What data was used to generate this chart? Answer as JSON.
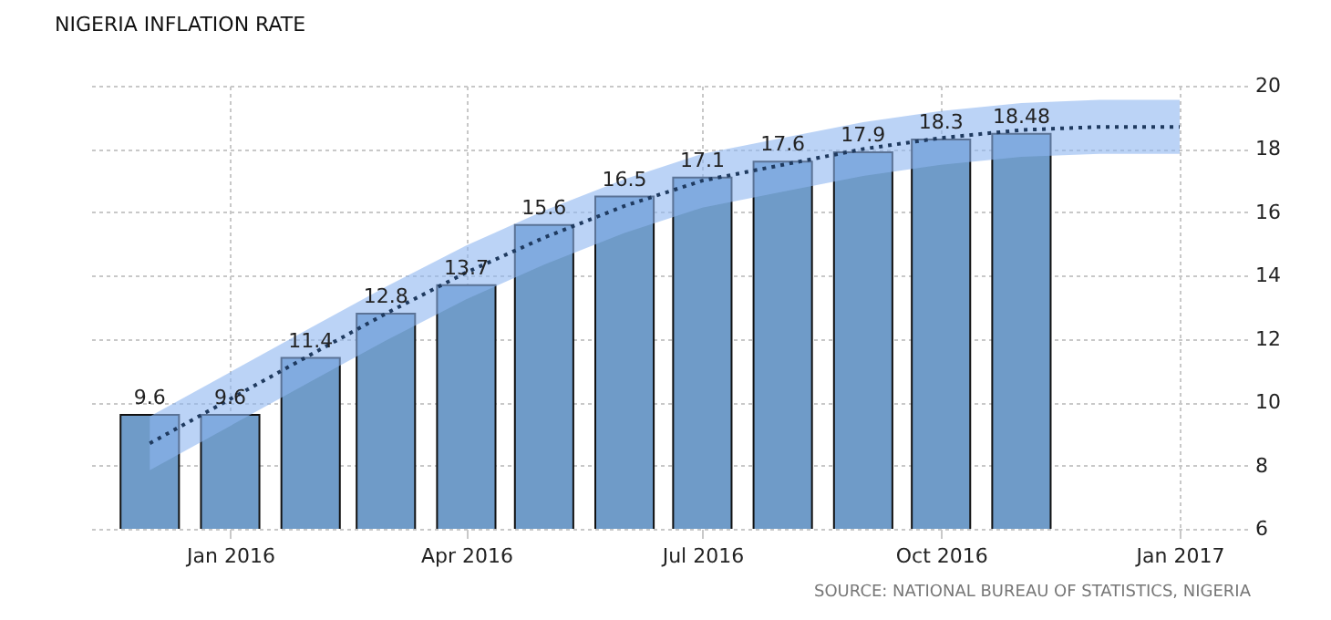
{
  "chart_data": {
    "type": "bar",
    "title": "NIGERIA INFLATION RATE",
    "annotations": [
      "SOURCE: NATIONAL BUREAU OF STATISTICS, NIGERIA"
    ],
    "x": [
      "2015-12",
      "2016-01",
      "2016-02",
      "2016-03",
      "2016-04",
      "2016-05",
      "2016-06",
      "2016-07",
      "2016-08",
      "2016-09",
      "2016-10",
      "2016-11"
    ],
    "series": [
      {
        "color": "#6f9bc8",
        "values": [
          9.6,
          9.6,
          11.4,
          12.8,
          13.7,
          15.6,
          16.5,
          17.1,
          17.6,
          17.9,
          18.3,
          18.48
        ],
        "value_labels": [
          "9.6",
          "9.6",
          "11.4",
          "12.8",
          "13.7",
          "15.6",
          "16.5",
          "17.1",
          "17.6",
          "17.9",
          "18.3",
          "18.48"
        ]
      },
      {
        "type": "line",
        "color": "#1f3a5f",
        "line_style": "dotted",
        "marker": "none",
        "x": [
          "2015-12",
          "2016-01",
          "2016-02",
          "2016-03",
          "2016-04",
          "2016-05",
          "2016-06",
          "2016-07",
          "2016-08",
          "2016-09",
          "2016-10",
          "2016-11",
          "2016-12",
          "2017-01"
        ],
        "values": [
          8.7,
          10.1,
          11.5,
          12.8,
          14.1,
          15.2,
          16.2,
          17.0,
          17.5,
          18.0,
          18.35,
          18.6,
          18.7,
          18.7
        ],
        "lower": [
          7.85,
          9.25,
          10.65,
          11.95,
          13.25,
          14.35,
          15.35,
          16.15,
          16.65,
          17.15,
          17.5,
          17.75,
          17.85,
          17.85
        ],
        "upper": [
          9.55,
          10.95,
          12.35,
          13.65,
          14.95,
          16.05,
          17.05,
          17.85,
          18.35,
          18.85,
          19.2,
          19.45,
          19.55,
          19.55
        ]
      }
    ],
    "xlim": [
      "2015-11-07",
      "2017-01-27"
    ],
    "xticks": [
      {
        "value": "2016-01",
        "label": "Jan 2016"
      },
      {
        "value": "2016-04",
        "label": "Apr 2016"
      },
      {
        "value": "2016-07",
        "label": "Jul 2016"
      },
      {
        "value": "2016-10",
        "label": "Oct 2016"
      },
      {
        "value": "2017-01",
        "label": "Jan 2017"
      }
    ],
    "ylim": [
      6,
      20
    ],
    "yticks": [
      6,
      8,
      10,
      12,
      14,
      16,
      18,
      20
    ],
    "grid": true
  }
}
